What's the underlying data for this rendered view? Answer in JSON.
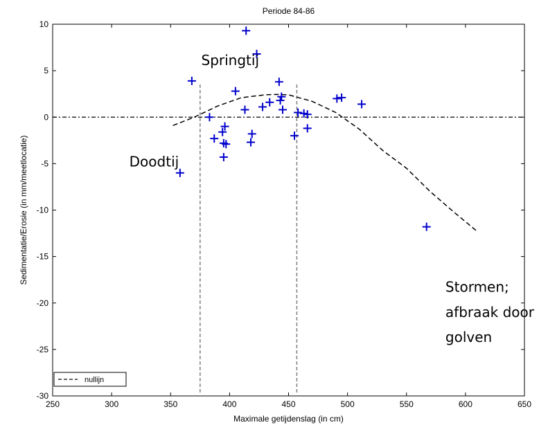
{
  "chart_data": {
    "type": "scatter",
    "title": "Periode 84-86",
    "xlabel": "Maximale getijdenslag (in cm)",
    "ylabel": "Sedimentatie/Erosie (in mm/meetlocatie)",
    "xlim": [
      250,
      650
    ],
    "ylim": [
      -30,
      10
    ],
    "xticks": [
      250,
      300,
      350,
      400,
      450,
      500,
      550,
      600,
      650
    ],
    "yticks": [
      10,
      5,
      0,
      -5,
      -10,
      -15,
      -20,
      -25,
      -30
    ],
    "xtick_labels": [
      "250",
      "300",
      "350",
      "400",
      "450",
      "500",
      "550",
      "600",
      "650"
    ],
    "ytick_labels": [
      "10",
      "5",
      "0",
      "-5",
      "-10",
      "-15",
      "-20",
      "-25",
      "-30"
    ],
    "grid": false,
    "legend": {
      "position": "bottom-left",
      "entries": [
        "nullijn"
      ]
    },
    "points_color": "#0000cc",
    "series": [
      {
        "marker": "+",
        "x": [
          358,
          368,
          383,
          387,
          394,
          395,
          395,
          396,
          397,
          405,
          413,
          414,
          418,
          419,
          423,
          428,
          434,
          442,
          443,
          444,
          445,
          455,
          458,
          463,
          466,
          466,
          491,
          495,
          512,
          567
        ],
        "y": [
          -6.0,
          3.9,
          0.0,
          -2.3,
          -1.6,
          -4.3,
          -2.8,
          -1.0,
          -2.9,
          2.8,
          0.8,
          9.3,
          -2.7,
          -1.8,
          6.8,
          1.1,
          1.6,
          3.8,
          1.8,
          2.2,
          0.8,
          -2.0,
          0.5,
          0.4,
          0.3,
          -1.2,
          2.0,
          2.1,
          1.4,
          -11.8
        ]
      }
    ],
    "fit_curve": {
      "style": "dashed",
      "x": [
        352,
        370,
        390,
        410,
        430,
        440,
        450,
        470,
        490,
        510,
        530,
        550,
        570,
        590,
        610
      ],
      "y": [
        -0.9,
        0.0,
        1.2,
        2.1,
        2.4,
        2.45,
        2.4,
        1.7,
        0.5,
        -1.3,
        -3.6,
        -5.5,
        -8.0,
        -10.2,
        -12.3
      ]
    },
    "zero_line": {
      "y": 0,
      "style": "dash-dot",
      "label": "nullijn"
    },
    "vertical_lines": [
      {
        "x": 375,
        "style": "dashed",
        "color": "#808080"
      },
      {
        "x": 457,
        "style": "dashed",
        "color": "#808080"
      }
    ],
    "annotations": [
      {
        "text": "Springtij",
        "x": 376,
        "y": 5.6
      },
      {
        "text": "Doodtij",
        "x": 315,
        "y": -5.3
      },
      {
        "text": "Stormen;",
        "x": 583,
        "y": -18.8
      },
      {
        "text": "afbraak door",
        "x": 583,
        "y": -21.5
      },
      {
        "text": "golven",
        "x": 583,
        "y": -24.2
      }
    ]
  }
}
